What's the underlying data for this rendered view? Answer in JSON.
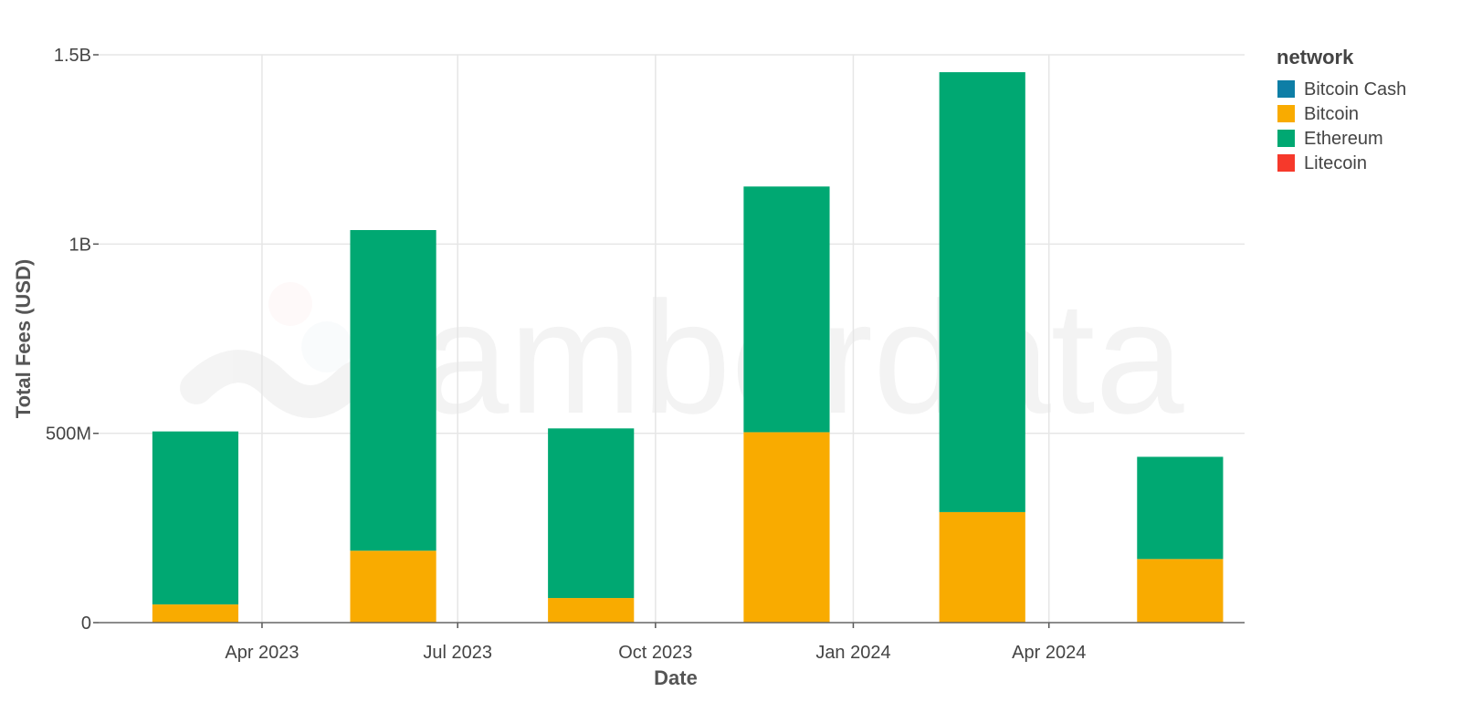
{
  "chart_data": {
    "type": "bar",
    "stacked": true,
    "xlabel": "Date",
    "ylabel": "Total Fees (USD)",
    "x": [
      "2023-03-01",
      "2023-06-01",
      "2023-09-01",
      "2023-12-01",
      "2024-03-01",
      "2024-06-01"
    ],
    "x_range": [
      "2023-01-15",
      "2024-07-01"
    ],
    "x_ticks": [
      {
        "date": "2023-04-01",
        "label": "Apr 2023"
      },
      {
        "date": "2023-07-01",
        "label": "Jul 2023"
      },
      {
        "date": "2023-10-01",
        "label": "Oct 2023"
      },
      {
        "date": "2024-01-01",
        "label": "Jan 2024"
      },
      {
        "date": "2024-04-01",
        "label": "Apr 2024"
      }
    ],
    "ylim": [
      0,
      1500000000
    ],
    "y_ticks": [
      {
        "value": 0,
        "label": "0"
      },
      {
        "value": 500000000,
        "label": "500M"
      },
      {
        "value": 1000000000,
        "label": "1B"
      },
      {
        "value": 1500000000,
        "label": "1.5B"
      }
    ],
    "grid": true,
    "legend": {
      "title": "network",
      "position": "right"
    },
    "series": [
      {
        "name": "Bitcoin Cash",
        "color": "#0e7ea6",
        "values": [
          0,
          0,
          0,
          0,
          0,
          0
        ]
      },
      {
        "name": "Bitcoin",
        "color": "#f9ab00",
        "values": [
          48000000,
          190000000,
          65000000,
          503000000,
          292000000,
          168000000
        ]
      },
      {
        "name": "Ethereum",
        "color": "#00a872",
        "values": [
          457000000,
          847000000,
          448000000,
          649000000,
          1162000000,
          270000000
        ]
      },
      {
        "name": "Litecoin",
        "color": "#f6392b",
        "values": [
          0,
          0,
          0,
          0,
          0,
          0
        ]
      }
    ]
  },
  "watermark": {
    "text": "amberdata"
  }
}
